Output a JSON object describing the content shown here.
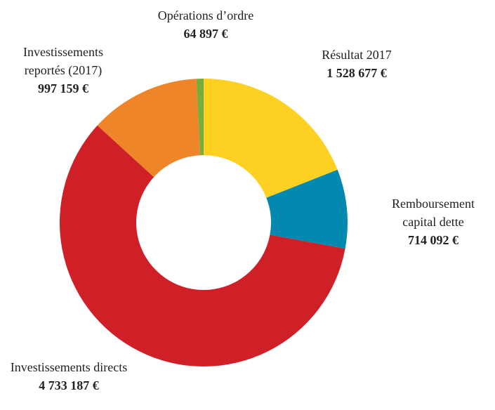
{
  "chart_data": {
    "type": "donut",
    "categories": [
      "Résultat 2017",
      "Remboursement capital dette",
      "Investissements directs",
      "Investissements reportés (2017)",
      "Opérations d’ordre"
    ],
    "values": [
      1528677,
      714092,
      4733187,
      997159,
      64897
    ],
    "value_labels": [
      "1 528 677 €",
      "714 092 €",
      "4 733 187 €",
      "997 159 €",
      "64 897 €"
    ],
    "colors": [
      "#fdd022",
      "#0388b0",
      "#cf2027",
      "#ee8528",
      "#76ad3c"
    ]
  }
}
